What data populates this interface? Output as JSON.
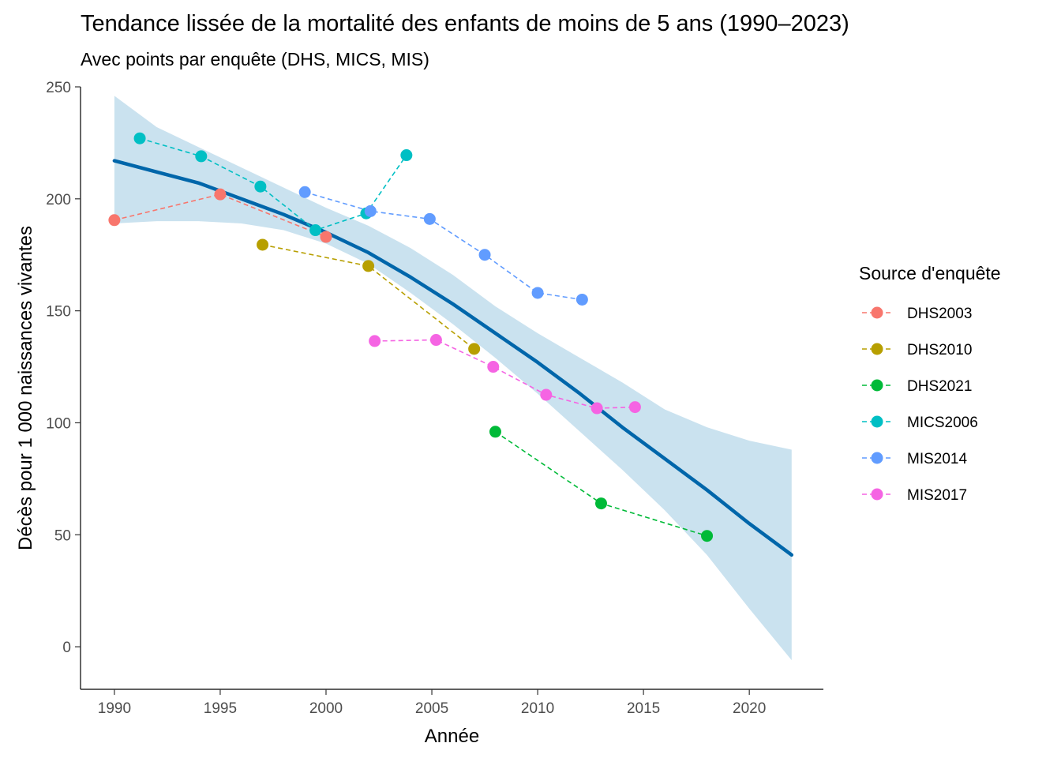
{
  "chart_data": {
    "type": "line",
    "title": "Tendance lissée de la mortalité des enfants de moins de 5 ans (1990–2023)",
    "subtitle": "Avec points par enquête (DHS, MICS, MIS)",
    "xlabel": "Année",
    "ylabel": "Décès pour 1 000 naissances vivantes",
    "xlim": [
      1988.4,
      2023.5
    ],
    "ylim": [
      -19,
      250
    ],
    "xticks": [
      1990,
      1995,
      2000,
      2005,
      2010,
      2015,
      2020
    ],
    "yticks": [
      0,
      50,
      100,
      150,
      200,
      250
    ],
    "grid": false,
    "legend_title": "Source d'enquête",
    "legend_position": "right",
    "series": [
      {
        "name": "DHS2003",
        "color": "#F8766D",
        "x": [
          1990,
          1995,
          2000
        ],
        "y": [
          190.5,
          202,
          183
        ]
      },
      {
        "name": "DHS2010",
        "color": "#B79F00",
        "x": [
          1997,
          2002,
          2007
        ],
        "y": [
          179.5,
          170,
          133
        ]
      },
      {
        "name": "DHS2021",
        "color": "#00BA38",
        "x": [
          2008,
          2013,
          2018
        ],
        "y": [
          96,
          64,
          49.5
        ]
      },
      {
        "name": "MICS2006",
        "color": "#00BFC4",
        "x": [
          1991.2,
          1994.1,
          1996.9,
          1999.5,
          2001.9,
          2003.8
        ],
        "y": [
          227,
          219,
          205.5,
          186,
          193.5,
          219.5
        ]
      },
      {
        "name": "MIS2014",
        "color": "#619CFF",
        "x": [
          1999,
          2002.1,
          2004.9,
          2007.5,
          2010,
          2012.1
        ],
        "y": [
          203,
          194.5,
          191,
          175,
          158,
          155
        ]
      },
      {
        "name": "MIS2017",
        "color": "#F564E3",
        "x": [
          2002.3,
          2005.2,
          2007.9,
          2010.4,
          2012.8,
          2014.6
        ],
        "y": [
          136.5,
          137,
          125,
          112.5,
          106.5,
          107
        ]
      }
    ],
    "smooth": {
      "color": "#0066AA",
      "band_color": "#9ECAE1",
      "x": [
        1990,
        1992,
        1994,
        1996,
        1998,
        2000,
        2002,
        2004,
        2006,
        2008,
        2010,
        2012,
        2014,
        2016,
        2018,
        2020,
        2022
      ],
      "y": [
        217,
        212,
        207,
        200,
        193,
        185,
        176,
        165,
        153,
        140,
        127,
        113,
        98,
        84,
        70,
        55,
        41
      ],
      "lower": [
        189,
        190,
        190,
        189,
        186,
        180,
        171,
        158,
        144,
        129,
        113,
        96,
        79,
        61,
        41,
        17,
        -6
      ],
      "upper": [
        246,
        232,
        223,
        214,
        205,
        196,
        188,
        178,
        166,
        152,
        140,
        129,
        118,
        106,
        98,
        92,
        88
      ]
    }
  }
}
